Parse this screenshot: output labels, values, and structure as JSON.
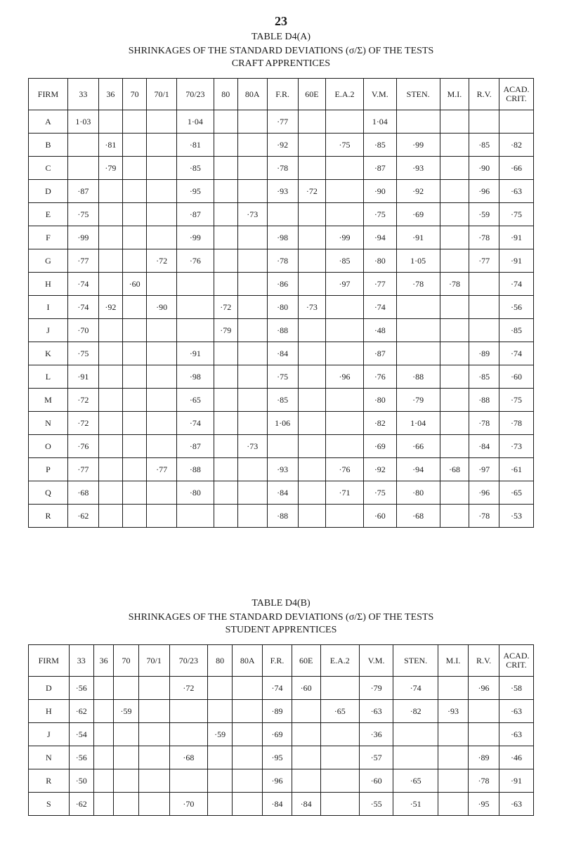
{
  "page_number": "23",
  "tableA": {
    "label": "TABLE D4(A)",
    "title": "SHRINKAGES OF THE STANDARD DEVIATIONS (σ/Σ) OF THE TESTS",
    "subtitle": "CRAFT APPRENTICES",
    "headers": [
      "FIRM",
      "33",
      "36",
      "70",
      "70/1",
      "70/23",
      "80",
      "80A",
      "F.R.",
      "60E",
      "E.A.2",
      "V.M.",
      "STEN.",
      "M.I.",
      "R.V.",
      "ACAD. CRIT."
    ],
    "rows": [
      [
        "A",
        "1·03",
        "",
        "",
        "",
        "1·04",
        "",
        "",
        "·77",
        "",
        "",
        "1·04",
        "",
        "",
        "",
        ""
      ],
      [
        "B",
        "",
        "·81",
        "",
        "",
        "·81",
        "",
        "",
        "·92",
        "",
        "·75",
        "·85",
        "·99",
        "",
        "·85",
        "·82"
      ],
      [
        "C",
        "",
        "·79",
        "",
        "",
        "·85",
        "",
        "",
        "·78",
        "",
        "",
        "·87",
        "·93",
        "",
        "·90",
        "·66"
      ],
      [
        "D",
        "·87",
        "",
        "",
        "",
        "·95",
        "",
        "",
        "·93",
        "·72",
        "",
        "·90",
        "·92",
        "",
        "·96",
        "·63"
      ],
      [
        "E",
        "·75",
        "",
        "",
        "",
        "·87",
        "",
        "·73",
        "",
        "",
        "",
        "·75",
        "·69",
        "",
        "·59",
        "·75"
      ],
      [
        "F",
        "·99",
        "",
        "",
        "",
        "·99",
        "",
        "",
        "·98",
        "",
        "·99",
        "·94",
        "·91",
        "",
        "·78",
        "·91"
      ],
      [
        "G",
        "·77",
        "",
        "",
        "·72",
        "·76",
        "",
        "",
        "·78",
        "",
        "·85",
        "·80",
        "1·05",
        "",
        "·77",
        "·91"
      ],
      [
        "H",
        "·74",
        "",
        "·60",
        "",
        "",
        "",
        "",
        "·86",
        "",
        "·97",
        "·77",
        "·78",
        "·78",
        "",
        "·74"
      ],
      [
        "I",
        "·74",
        "·92",
        "",
        "·90",
        "",
        "·72",
        "",
        "·80",
        "·73",
        "",
        "·74",
        "",
        "",
        "",
        "·56"
      ],
      [
        "J",
        "·70",
        "",
        "",
        "",
        "",
        "·79",
        "",
        "·88",
        "",
        "",
        "·48",
        "",
        "",
        "",
        "·85"
      ],
      [
        "K",
        "·75",
        "",
        "",
        "",
        "·91",
        "",
        "",
        "·84",
        "",
        "",
        "·87",
        "",
        "",
        "·89",
        "·74"
      ],
      [
        "L",
        "·91",
        "",
        "",
        "",
        "·98",
        "",
        "",
        "·75",
        "",
        "·96",
        "·76",
        "·88",
        "",
        "·85",
        "·60"
      ],
      [
        "M",
        "·72",
        "",
        "",
        "",
        "·65",
        "",
        "",
        "·85",
        "",
        "",
        "·80",
        "·79",
        "",
        "·88",
        "·75"
      ],
      [
        "N",
        "·72",
        "",
        "",
        "",
        "·74",
        "",
        "",
        "1·06",
        "",
        "",
        "·82",
        "1·04",
        "",
        "·78",
        "·78"
      ],
      [
        "O",
        "·76",
        "",
        "",
        "",
        "·87",
        "",
        "·73",
        "",
        "",
        "",
        "·69",
        "·66",
        "",
        "·84",
        "·73"
      ],
      [
        "P",
        "·77",
        "",
        "",
        "·77",
        "·88",
        "",
        "",
        "·93",
        "",
        "·76",
        "·92",
        "·94",
        "·68",
        "·97",
        "·61"
      ],
      [
        "Q",
        "·68",
        "",
        "",
        "",
        "·80",
        "",
        "",
        "·84",
        "",
        "·71",
        "·75",
        "·80",
        "",
        "·96",
        "·65"
      ],
      [
        "R",
        "·62",
        "",
        "",
        "",
        "",
        "",
        "",
        "·88",
        "",
        "",
        "·60",
        "·68",
        "",
        "·78",
        "·53"
      ]
    ]
  },
  "tableB": {
    "label": "TABLE D4(B)",
    "title": "SHRINKAGES OF THE STANDARD DEVIATIONS (σ/Σ) OF THE TESTS",
    "subtitle": "STUDENT APPRENTICES",
    "headers": [
      "FIRM",
      "33",
      "36",
      "70",
      "70/1",
      "70/23",
      "80",
      "80A",
      "F.R.",
      "60E",
      "E.A.2",
      "V.M.",
      "STEN.",
      "M.I.",
      "R.V.",
      "ACAD. CRIT."
    ],
    "rows": [
      [
        "D",
        "·56",
        "",
        "",
        "",
        "·72",
        "",
        "",
        "·74",
        "·60",
        "",
        "·79",
        "·74",
        "",
        "·96",
        "·58"
      ],
      [
        "H",
        "·62",
        "",
        "·59",
        "",
        "",
        "",
        "",
        "·89",
        "",
        "·65",
        "·63",
        "·82",
        "·93",
        "",
        "·63"
      ],
      [
        "J",
        "·54",
        "",
        "",
        "",
        "",
        "·59",
        "",
        "·69",
        "",
        "",
        "·36",
        "",
        "",
        "",
        "·63"
      ],
      [
        "N",
        "·56",
        "",
        "",
        "",
        "·68",
        "",
        "",
        "·95",
        "",
        "",
        "·57",
        "",
        "",
        "·89",
        "·46"
      ],
      [
        "R",
        "·50",
        "",
        "",
        "",
        "",
        "",
        "",
        "·96",
        "",
        "",
        "·60",
        "·65",
        "",
        "·78",
        "·91"
      ],
      [
        "S",
        "·62",
        "",
        "",
        "",
        "·70",
        "",
        "",
        "·84",
        "·84",
        "",
        "·55",
        "·51",
        "",
        "·95",
        "·63"
      ]
    ]
  }
}
